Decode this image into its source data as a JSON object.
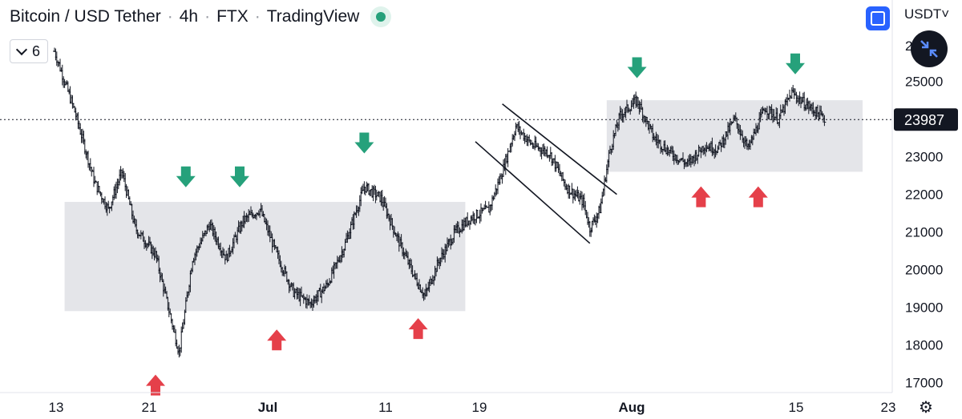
{
  "header": {
    "symbol": "Bitcoin / USD Tether",
    "interval": "4h",
    "exchange": "FTX",
    "source": "TradingView"
  },
  "indicators_toggle": {
    "count": "6"
  },
  "currency": "USDT",
  "colors": {
    "accent": "#2962ff",
    "live": "#26a17b",
    "down_arrow": "#26a17b",
    "up_arrow": "#e5404a",
    "zone": "#e4e5e9",
    "price_label_bg": "#131722"
  },
  "icons": {
    "fullscreen": "fullscreen-icon",
    "shrink": "collapse-arrows-icon",
    "settings": "gear-icon"
  },
  "chart_data": {
    "type": "candlestick",
    "title": "Bitcoin / USD Tether · 4h · FTX · TradingView",
    "y_ticks": [
      17000,
      18000,
      19000,
      20000,
      21000,
      22000,
      23000,
      24000,
      25000
    ],
    "ylim": [
      16900,
      26000
    ],
    "y_tick_partial_top": "2",
    "x_tick_labels": [
      "13",
      "21",
      "Jul",
      "11",
      "19",
      "Aug",
      "15",
      "23"
    ],
    "current_price": 23987,
    "price_path": [
      [
        0.0,
        25800
      ],
      [
        3.0,
        24200
      ],
      [
        6.0,
        22300
      ],
      [
        8.0,
        21600
      ],
      [
        10.0,
        22600
      ],
      [
        12.0,
        21100
      ],
      [
        15.0,
        20400
      ],
      [
        18.5,
        17800
      ],
      [
        20.5,
        20300
      ],
      [
        23.0,
        21200
      ],
      [
        25.5,
        20300
      ],
      [
        28.0,
        21300
      ],
      [
        30.5,
        21600
      ],
      [
        33.0,
        20400
      ],
      [
        35.5,
        19400
      ],
      [
        38.0,
        19100
      ],
      [
        40.5,
        19600
      ],
      [
        43.0,
        20600
      ],
      [
        46.0,
        22200
      ],
      [
        48.5,
        21900
      ],
      [
        51.0,
        20800
      ],
      [
        53.5,
        19800
      ],
      [
        55.0,
        19300
      ],
      [
        57.0,
        20200
      ],
      [
        59.5,
        21000
      ],
      [
        62.0,
        21400
      ],
      [
        64.5,
        21600
      ],
      [
        66.5,
        22600
      ],
      [
        68.5,
        23800
      ],
      [
        71.0,
        23300
      ],
      [
        73.5,
        23100
      ],
      [
        76.0,
        22200
      ],
      [
        78.5,
        21800
      ],
      [
        79.5,
        21100
      ],
      [
        81.0,
        21600
      ],
      [
        82.5,
        23200
      ],
      [
        84.0,
        24100
      ],
      [
        86.5,
        24500
      ],
      [
        89.0,
        23500
      ],
      [
        91.5,
        23100
      ],
      [
        94.0,
        22800
      ],
      [
        96.5,
        23300
      ],
      [
        98.5,
        23200
      ],
      [
        101.0,
        24000
      ],
      [
        103.0,
        23200
      ],
      [
        105.5,
        24300
      ],
      [
        107.5,
        24000
      ],
      [
        109.5,
        24700
      ],
      [
        111.5,
        24400
      ],
      [
        113.0,
        24200
      ],
      [
        114.5,
        23987
      ]
    ],
    "support_resistance_zones": [
      {
        "from_day": 1.5,
        "to_day": 61.0,
        "low": 18900,
        "high": 21800
      },
      {
        "from_day": 82.0,
        "to_day": 120.0,
        "low": 22600,
        "high": 24500
      }
    ],
    "channel": {
      "upper": [
        [
          66.5,
          24400
        ],
        [
          83.5,
          22000
        ]
      ],
      "lower": [
        [
          62.5,
          23400
        ],
        [
          79.5,
          20700
        ]
      ]
    },
    "markers": [
      {
        "type": "down",
        "day": 19.5,
        "price": 22400
      },
      {
        "type": "down",
        "day": 27.5,
        "price": 22400
      },
      {
        "type": "down",
        "day": 46.0,
        "price": 23300
      },
      {
        "type": "down",
        "day": 86.5,
        "price": 25300
      },
      {
        "type": "down",
        "day": 110.0,
        "price": 25400
      },
      {
        "type": "up",
        "day": 15.0,
        "price": 17000
      },
      {
        "type": "up",
        "day": 33.0,
        "price": 18200
      },
      {
        "type": "up",
        "day": 54.0,
        "price": 18500
      },
      {
        "type": "up",
        "day": 96.0,
        "price": 22000
      },
      {
        "type": "up",
        "day": 104.5,
        "price": 22000
      }
    ]
  }
}
